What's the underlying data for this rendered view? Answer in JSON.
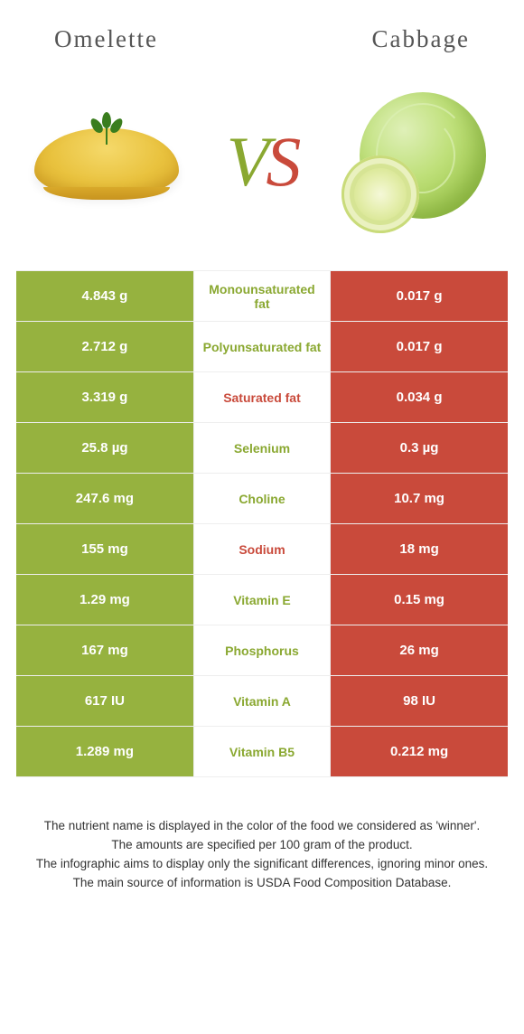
{
  "header": {
    "left_title": "Omelette",
    "right_title": "Cabbage",
    "vs_v": "V",
    "vs_s": "S"
  },
  "colors": {
    "left_bg": "#96b23f",
    "right_bg": "#c94a3b",
    "left_text": "#8aa831",
    "right_text": "#c94a3b",
    "row_border": "#eeeeee"
  },
  "rows": [
    {
      "left": "4.843 g",
      "label": "Monounsaturated fat",
      "right": "0.017 g",
      "winner": "left"
    },
    {
      "left": "2.712 g",
      "label": "Polyunsaturated fat",
      "right": "0.017 g",
      "winner": "left"
    },
    {
      "left": "3.319 g",
      "label": "Saturated fat",
      "right": "0.034 g",
      "winner": "right"
    },
    {
      "left": "25.8 µg",
      "label": "Selenium",
      "right": "0.3 µg",
      "winner": "left"
    },
    {
      "left": "247.6 mg",
      "label": "Choline",
      "right": "10.7 mg",
      "winner": "left"
    },
    {
      "left": "155 mg",
      "label": "Sodium",
      "right": "18 mg",
      "winner": "right"
    },
    {
      "left": "1.29 mg",
      "label": "Vitamin E",
      "right": "0.15 mg",
      "winner": "left"
    },
    {
      "left": "167 mg",
      "label": "Phosphorus",
      "right": "26 mg",
      "winner": "left"
    },
    {
      "left": "617 IU",
      "label": "Vitamin A",
      "right": "98 IU",
      "winner": "left"
    },
    {
      "left": "1.289 mg",
      "label": "Vitamin B5",
      "right": "0.212 mg",
      "winner": "left"
    }
  ],
  "footer": {
    "line1": "The nutrient name is displayed in the color of the food we considered as 'winner'.",
    "line2": "The amounts are specified per 100 gram of the product.",
    "line3": "The infographic aims to display only the significant differences, ignoring minor ones.",
    "line4": "The main source of information is USDA Food Composition Database."
  }
}
